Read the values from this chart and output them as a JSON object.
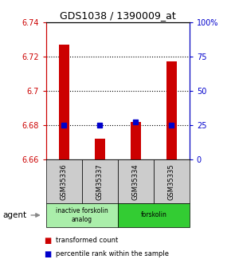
{
  "title": "GDS1038 / 1390009_at",
  "samples": [
    "GSM35336",
    "GSM35337",
    "GSM35334",
    "GSM35335"
  ],
  "red_values": [
    6.727,
    6.672,
    6.682,
    6.717
  ],
  "blue_values": [
    6.68,
    6.68,
    6.682,
    6.68
  ],
  "ylim": [
    6.66,
    6.74
  ],
  "yticks_left": [
    6.66,
    6.68,
    6.7,
    6.72,
    6.74
  ],
  "yticks_right": [
    0,
    25,
    50,
    75,
    100
  ],
  "ytick_labels_left": [
    "6.66",
    "6.68",
    "6.7",
    "6.72",
    "6.74"
  ],
  "ytick_labels_right": [
    "0",
    "25",
    "50",
    "75",
    "100%"
  ],
  "grid_yticks": [
    6.68,
    6.7,
    6.72
  ],
  "agent_groups": [
    {
      "label": "inactive forskolin\nanalog",
      "samples": [
        0,
        1
      ],
      "color": "#aaeeaa"
    },
    {
      "label": "forskolin",
      "samples": [
        2,
        3
      ],
      "color": "#33cc33"
    }
  ],
  "bar_color": "#cc0000",
  "dot_color": "#0000cc",
  "base": 6.66,
  "left_axis_color": "#cc0000",
  "right_axis_color": "#0000cc",
  "sample_box_color": "#cccccc",
  "legend_red_label": "transformed count",
  "legend_blue_label": "percentile rank within the sample"
}
